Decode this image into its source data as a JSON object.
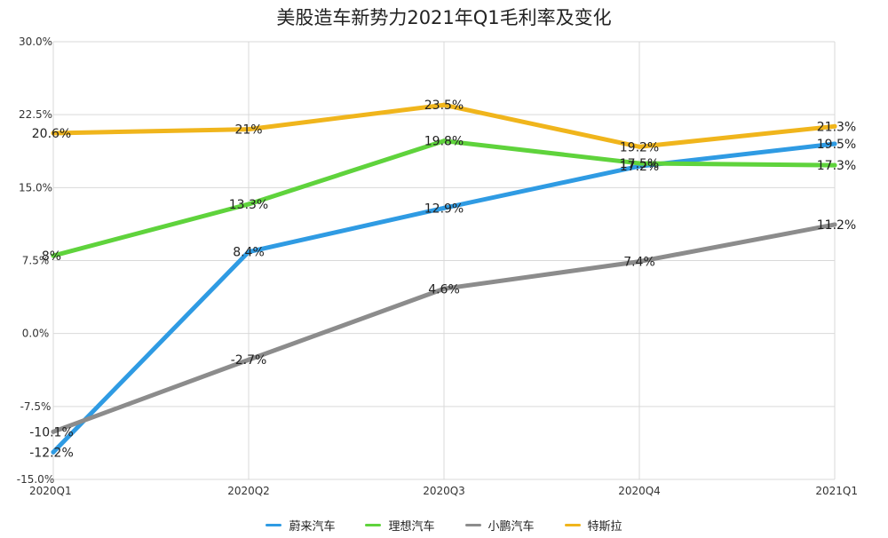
{
  "chart_data": {
    "type": "line",
    "title": "美股造车新势力2021年Q1毛利率及变化",
    "categories": [
      "2020Q1",
      "2020Q2",
      "2020Q3",
      "2020Q4",
      "2021Q1"
    ],
    "ylim": [
      -15,
      30
    ],
    "y_ticks": [
      "30.0%",
      "22.5%",
      "15.0%",
      "7.5%",
      "0.0%",
      "-7.5%",
      "-15.0%"
    ],
    "y_tick_values": [
      30,
      22.5,
      15,
      7.5,
      0,
      -7.5,
      -15
    ],
    "grid": true,
    "legend_position": "bottom",
    "series": [
      {
        "name": "蔚来汽车",
        "color": "#2f9be3",
        "values": [
          -12.2,
          8.4,
          12.9,
          17.2,
          19.5
        ],
        "labels": [
          "-12.2%",
          "8.4%",
          "12.9%",
          "17.2%",
          "19.5%"
        ]
      },
      {
        "name": "理想汽车",
        "color": "#5fd33c",
        "values": [
          8,
          13.3,
          19.8,
          17.5,
          17.3
        ],
        "labels": [
          "8%",
          "13.3%",
          "19.8%",
          "17.5%",
          "17.3%"
        ]
      },
      {
        "name": "小鹏汽车",
        "color": "#8c8c8c",
        "values": [
          -10.1,
          -2.7,
          4.6,
          7.4,
          11.2
        ],
        "labels": [
          "-10.1%",
          "-2.7%",
          "4.6%",
          "7.4%",
          "11.2%"
        ]
      },
      {
        "name": "特斯拉",
        "color": "#f0b51c",
        "values": [
          20.6,
          21,
          23.5,
          19.2,
          21.3
        ],
        "labels": [
          "20.6%",
          "21%",
          "23.5%",
          "19.2%",
          "21.3%"
        ]
      }
    ]
  }
}
